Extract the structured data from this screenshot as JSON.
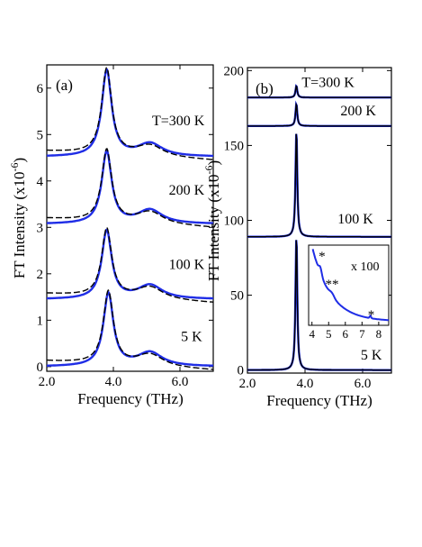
{
  "colors": {
    "data": "#1f2de6",
    "fit": "#000000",
    "axis": "#000000"
  },
  "chart_data": [
    {
      "type": "line",
      "panel_label": "(a)",
      "xlabel": "Frequency (THz)",
      "ylabel": "FT Intensity (x10",
      "ylabel_exp": "-6",
      "ylabel_close": ")",
      "xlim": [
        2.0,
        7.0
      ],
      "ylim": [
        -0.1,
        6.5
      ],
      "xticks": [
        2.0,
        4.0,
        6.0
      ],
      "xtick_labels": [
        "2.0",
        "4.0",
        "6.0"
      ],
      "yticks": [
        0,
        1,
        2,
        3,
        4,
        5,
        6
      ],
      "ytick_labels": [
        "0",
        "1",
        "2",
        "3",
        "4",
        "5",
        "6"
      ],
      "grid": false,
      "series": [
        {
          "name": "",
          "label": "T=300 K",
          "offset": 4.52,
          "peak": 1.85,
          "peak_x": 3.8,
          "second_peak": 0.28,
          "second_x": 5.1,
          "label_x": 5.95,
          "label_y": 5.2
        },
        {
          "name": "",
          "label": "200 K",
          "offset": 3.07,
          "peak": 1.55,
          "peak_x": 3.8,
          "second_peak": 0.3,
          "second_x": 5.1,
          "label_x": 6.2,
          "label_y": 3.7
        },
        {
          "name": "",
          "label": "100 K",
          "offset": 1.45,
          "peak": 1.47,
          "peak_x": 3.8,
          "second_peak": 0.3,
          "second_x": 5.1,
          "label_x": 6.2,
          "label_y": 2.1
        },
        {
          "name": "",
          "label": "5 K",
          "offset": 0.0,
          "peak": 1.57,
          "peak_x": 3.85,
          "second_peak": 0.3,
          "second_x": 5.1,
          "label_x": 6.35,
          "label_y": 0.55
        }
      ]
    },
    {
      "type": "line",
      "panel_label": "(b)",
      "xlabel": "Frequency (THz)",
      "ylabel": "FT Intensity (x10",
      "ylabel_exp": "-6",
      "ylabel_close": ")",
      "xlim": [
        2.0,
        7.0
      ],
      "ylim": [
        -2,
        202
      ],
      "xticks": [
        2.0,
        4.0,
        6.0
      ],
      "xtick_labels": [
        "2.0",
        "4.0",
        "6.0"
      ],
      "yticks": [
        0,
        50,
        100,
        150,
        200
      ],
      "ytick_labels": [
        "0",
        "50",
        "100",
        "150",
        "200"
      ],
      "grid": false,
      "series": [
        {
          "name": "",
          "label": "T=300 K",
          "offset": 182,
          "peak": 8,
          "peak_x": 3.7,
          "label_x": 4.8,
          "label_y": 189
        },
        {
          "name": "",
          "label": "200 K",
          "offset": 163,
          "peak": 15,
          "peak_x": 3.7,
          "label_x": 5.85,
          "label_y": 170
        },
        {
          "name": "",
          "label": "100 K",
          "offset": 89,
          "peak": 72,
          "peak_x": 3.7,
          "label_x": 5.75,
          "label_y": 98
        },
        {
          "name": "",
          "label": "5 K",
          "offset": 0,
          "peak": 91,
          "peak_x": 3.7,
          "label_x": 6.3,
          "label_y": 7
        }
      ],
      "inset": {
        "xlim": [
          3.8,
          8.6
        ],
        "xticks": [
          4,
          5,
          6,
          7,
          8
        ],
        "xtick_labels": [
          "4",
          "5",
          "6",
          "7",
          "8"
        ],
        "scale_label": "x 100",
        "annotations": [
          {
            "text": "*",
            "x": 4.6,
            "y": 0.9
          },
          {
            "text": "**",
            "x": 5.2,
            "y": 0.55
          },
          {
            "text": "*",
            "x": 7.55,
            "y": 0.17
          }
        ]
      }
    }
  ]
}
